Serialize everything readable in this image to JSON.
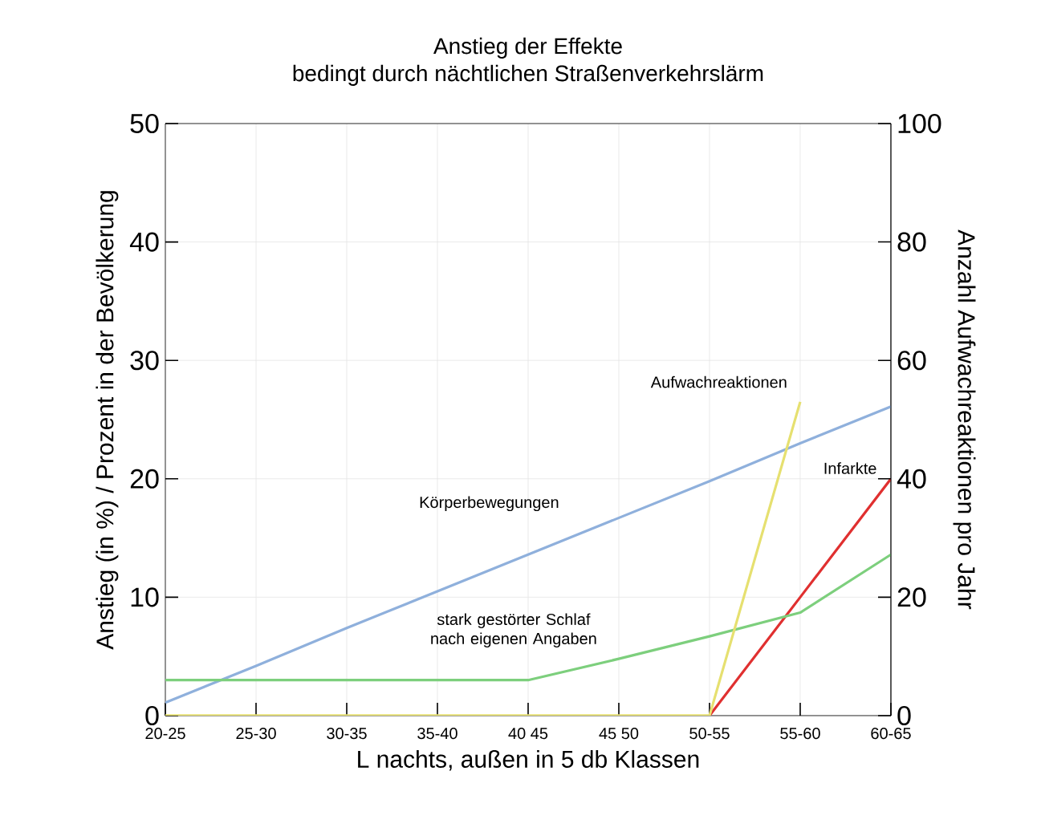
{
  "chart_data": {
    "type": "line",
    "title": "Anstieg der Effekte",
    "subtitle": "bedingt durch nächtlichen Straßenverkehrslärm",
    "xlabel": "L nachts, außen in 5 db Klassen",
    "ylabel": "Anstieg (in %) / Prozent in der Bevölkerung",
    "y2label": "Anzahl Aufwachreaktionen pro Jahr",
    "categories": [
      "20-25",
      "25-30",
      "30-35",
      "35-40",
      "40 45",
      "45 50",
      "50-55",
      "55-60",
      "60-65"
    ],
    "series": [
      {
        "name": "Aufwachreaktionen",
        "color": "#e6e070",
        "axis": "y2",
        "values": [
          0,
          0,
          0,
          0,
          0,
          0,
          0,
          53,
          null
        ]
      },
      {
        "name": "Körperbewegungen",
        "color": "#8fb0dc",
        "values": [
          1.1,
          4.2,
          7.4,
          10.5,
          13.6,
          16.7,
          19.8,
          23.0,
          26.1
        ]
      },
      {
        "name": "Infarkte",
        "color": "#e03030",
        "values": [
          null,
          null,
          null,
          null,
          null,
          null,
          0,
          10,
          20
        ]
      },
      {
        "name": "stark gestörter Schlaf nach eigenen Angaben",
        "color": "#7dcf7d",
        "values": [
          3,
          3,
          3,
          3,
          3,
          4.8,
          6.7,
          8.7,
          13.6
        ]
      }
    ],
    "ylim": [
      0,
      50
    ],
    "yticks": [
      0,
      10,
      20,
      30,
      40,
      50
    ],
    "y2lim": [
      0,
      100
    ],
    "y2ticks": [
      0,
      20,
      40,
      60,
      80,
      100
    ],
    "grid": true
  }
}
